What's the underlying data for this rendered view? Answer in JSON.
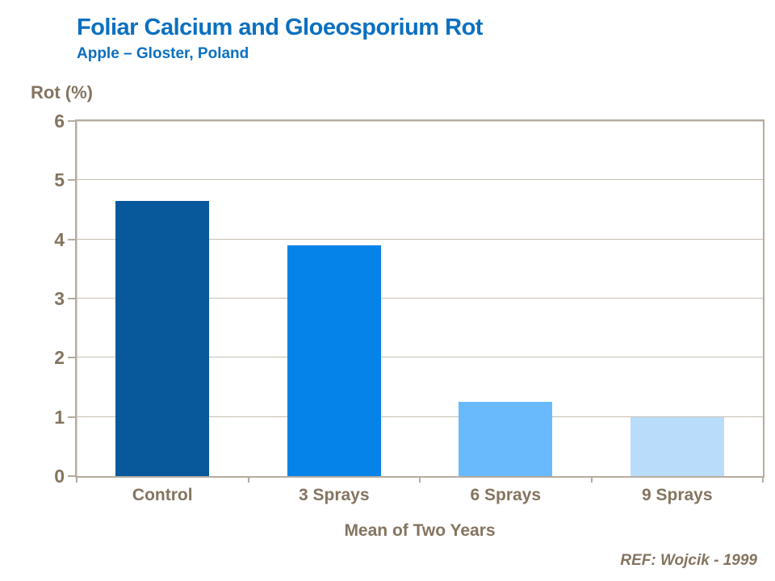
{
  "header": {
    "title": "Foliar Calcium and Gloeosporium Rot",
    "subtitle": "Apple – Gloster, Poland"
  },
  "footer": {
    "ref": "REF: Wojcik - 1999"
  },
  "colors": {
    "title_blue": "#0B70C0",
    "axis_text": "#84745F",
    "frame": "#B5ACA0",
    "gridline": "#C6BEB3"
  },
  "chart_data": {
    "type": "bar",
    "title": "Foliar Calcium and Gloeosporium Rot",
    "subtitle": "Apple – Gloster, Poland",
    "categories": [
      "Control",
      "3 Sprays",
      "6 Sprays",
      "9 Sprays"
    ],
    "values": [
      4.65,
      3.9,
      1.25,
      1.0
    ],
    "bar_colors": [
      "#07599C",
      "#0583E8",
      "#69BAFC",
      "#BADCFB"
    ],
    "ylabel": "Rot (%)",
    "xlabel": "Mean of Two Years",
    "ylim": [
      0,
      6
    ],
    "yticks": [
      0,
      1,
      2,
      3,
      4,
      5,
      6
    ],
    "grid": true,
    "legend": "none",
    "annotation": "REF: Wojcik - 1999"
  }
}
